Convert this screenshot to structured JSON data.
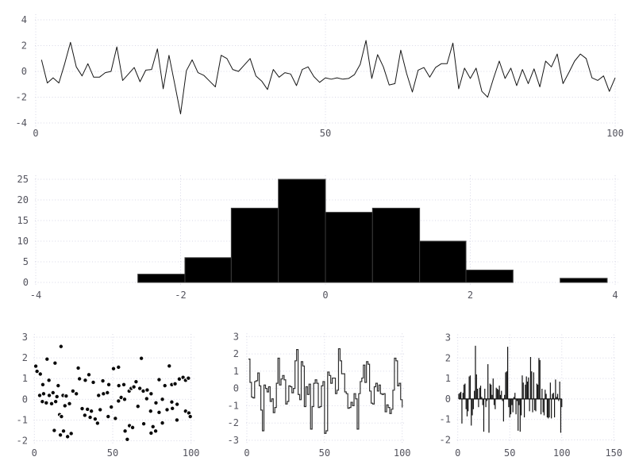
{
  "figure": {
    "background": "#ffffff",
    "grid_color": "#d7d7e6",
    "tick_label_color": "#53535d"
  },
  "chart_data": [
    {
      "id": "top-line",
      "type": "line",
      "title": "",
      "xlabel": "",
      "ylabel": "",
      "xlim": [
        0,
        100
      ],
      "ylim": [
        -4,
        4
      ],
      "xticks": [
        0,
        50,
        100
      ],
      "yticks": [
        4,
        2,
        0,
        -2,
        -4
      ],
      "grid": true,
      "legend": "none",
      "color": "#161616",
      "x_start": 1,
      "x_step": 1,
      "values": [
        0.9,
        -0.9,
        -0.5,
        -0.9,
        0.6,
        2.25,
        0.35,
        -0.35,
        0.6,
        -0.45,
        -0.45,
        -0.1,
        0.0,
        1.9,
        -0.7,
        -0.2,
        0.3,
        -0.8,
        0.1,
        0.15,
        1.75,
        -1.35,
        1.25,
        -1.0,
        -3.3,
        0.05,
        0.9,
        -0.1,
        -0.3,
        -0.75,
        -1.2,
        1.25,
        1.0,
        0.15,
        0.0,
        0.5,
        1.0,
        -0.35,
        -0.75,
        -1.4,
        0.15,
        -0.45,
        -0.1,
        -0.2,
        -1.1,
        0.15,
        0.35,
        -0.4,
        -0.85,
        -0.5,
        -0.6,
        -0.5,
        -0.6,
        -0.55,
        -0.25,
        0.55,
        2.4,
        -0.55,
        1.3,
        0.35,
        -1.05,
        -0.95,
        1.65,
        -0.15,
        -1.6,
        0.1,
        0.3,
        -0.45,
        0.3,
        0.6,
        0.6,
        2.2,
        -1.35,
        0.25,
        -0.55,
        0.25,
        -1.55,
        -2.0,
        -0.55,
        0.8,
        -0.55,
        0.25,
        -1.1,
        0.15,
        -0.95,
        0.2,
        -1.2,
        0.8,
        0.35,
        1.35,
        -0.95,
        -0.1,
        0.8,
        1.35,
        1.0,
        -0.5,
        -0.7,
        -0.35,
        -1.55,
        -0.5
      ]
    },
    {
      "id": "histogram",
      "type": "bar",
      "title": "",
      "xlim": [
        -4,
        4
      ],
      "ylim": [
        0,
        25
      ],
      "xticks": [
        -4,
        -2,
        0,
        2,
        4
      ],
      "yticks": [
        25,
        20,
        15,
        10,
        5,
        0
      ],
      "grid": true,
      "legend": "none",
      "fill": "#000000",
      "edge": "#3c3c3c",
      "bin_edges": [
        -2.59,
        -1.94,
        -1.3,
        -0.65,
        0.0,
        0.65,
        1.3,
        1.94,
        2.59,
        3.24,
        3.89
      ],
      "counts": [
        2,
        6,
        18,
        25,
        17,
        18,
        10,
        3,
        0,
        1
      ]
    },
    {
      "id": "scatter",
      "type": "scatter",
      "title": "",
      "xlim": [
        0,
        100
      ],
      "ylim": [
        -2,
        3
      ],
      "xticks": [
        0,
        50,
        100
      ],
      "yticks": [
        3,
        2,
        1,
        0,
        -1,
        -2
      ],
      "grid": true,
      "legend": "none",
      "marker_fill": "#0a0a0a",
      "marker_edge": "#ffffff",
      "marker_radius": 2.7,
      "points": [
        [
          0.9,
          1.6
        ],
        [
          1.7,
          1.35
        ],
        [
          3.4,
          0.19
        ],
        [
          3.8,
          1.22
        ],
        [
          5.1,
          -0.11
        ],
        [
          5.4,
          0.71
        ],
        [
          5.9,
          0.27
        ],
        [
          7.6,
          -0.17
        ],
        [
          8.1,
          1.94
        ],
        [
          9.3,
          0.92
        ],
        [
          9.5,
          0.19
        ],
        [
          11.0,
          -0.21
        ],
        [
          11.9,
          0.32
        ],
        [
          12.7,
          -1.5
        ],
        [
          13.2,
          1.75
        ],
        [
          13.6,
          -0.11
        ],
        [
          14.4,
          0.13
        ],
        [
          15.2,
          0.66
        ],
        [
          16.1,
          -0.74
        ],
        [
          16.6,
          -1.72
        ],
        [
          17.0,
          2.55
        ],
        [
          17.3,
          -0.83
        ],
        [
          18.3,
          0.19
        ],
        [
          18.6,
          -1.53
        ],
        [
          19.5,
          -0.31
        ],
        [
          20.3,
          0.16
        ],
        [
          21.2,
          -1.8
        ],
        [
          22.4,
          -0.21
        ],
        [
          23.5,
          -1.65
        ],
        [
          24.6,
          0.4
        ],
        [
          26.8,
          0.27
        ],
        [
          28.0,
          1.51
        ],
        [
          28.8,
          0.99
        ],
        [
          30.5,
          -0.45
        ],
        [
          32.2,
          -0.77
        ],
        [
          32.5,
          0.92
        ],
        [
          33.9,
          -0.48
        ],
        [
          34.8,
          1.19
        ],
        [
          35.6,
          -0.87
        ],
        [
          36.4,
          -0.57
        ],
        [
          37.6,
          0.82
        ],
        [
          38.8,
          -0.95
        ],
        [
          40.3,
          -1.15
        ],
        [
          41.0,
          0.19
        ],
        [
          42.0,
          -0.5
        ],
        [
          43.7,
          0.89
        ],
        [
          44.1,
          0.27
        ],
        [
          46.6,
          0.32
        ],
        [
          47.1,
          -0.83
        ],
        [
          47.5,
          0.71
        ],
        [
          49.1,
          -0.37
        ],
        [
          50.5,
          1.48
        ],
        [
          51.7,
          -0.92
        ],
        [
          53.7,
          1.55
        ],
        [
          53.9,
          0.66
        ],
        [
          53.7,
          -0.08
        ],
        [
          55.4,
          0.09
        ],
        [
          57.1,
          0.71
        ],
        [
          57.6,
          0.0
        ],
        [
          57.9,
          -1.53
        ],
        [
          59.3,
          -1.93
        ],
        [
          60.5,
          0.4
        ],
        [
          60.7,
          -1.27
        ],
        [
          61.8,
          0.53
        ],
        [
          62.7,
          -1.36
        ],
        [
          63.5,
          0.6
        ],
        [
          64.9,
          0.85
        ],
        [
          66.1,
          -0.34
        ],
        [
          67.3,
          0.53
        ],
        [
          68.3,
          1.98
        ],
        [
          69.5,
          0.4
        ],
        [
          69.8,
          -1.18
        ],
        [
          71.7,
          0.03
        ],
        [
          72.0,
          0.45
        ],
        [
          74.2,
          -0.57
        ],
        [
          74.5,
          0.27
        ],
        [
          74.5,
          -1.63
        ],
        [
          75.7,
          -1.32
        ],
        [
          77.4,
          -1.53
        ],
        [
          77.6,
          -0.17
        ],
        [
          79.6,
          0.95
        ],
        [
          79.6,
          -0.63
        ],
        [
          81.7,
          0.0
        ],
        [
          81.7,
          -1.14
        ],
        [
          83.3,
          0.66
        ],
        [
          84.7,
          -0.5
        ],
        [
          86.1,
          1.61
        ],
        [
          87.7,
          0.71
        ],
        [
          87.7,
          -0.13
        ],
        [
          88.1,
          -0.44
        ],
        [
          89.8,
          0.75
        ],
        [
          91.0,
          -1.0
        ],
        [
          91.1,
          -0.24
        ],
        [
          92.5,
          0.98
        ],
        [
          94.9,
          1.06
        ],
        [
          96.5,
          0.92
        ],
        [
          96.5,
          -0.57
        ],
        [
          98.3,
          1.02
        ],
        [
          98.6,
          -0.66
        ],
        [
          99.5,
          -0.83
        ]
      ]
    },
    {
      "id": "step",
      "type": "line",
      "style": "step-post",
      "title": "",
      "xlim": [
        0,
        100
      ],
      "ylim": [
        -3,
        3
      ],
      "xticks": [
        0,
        50,
        100
      ],
      "yticks": [
        3,
        2,
        1,
        0,
        -1,
        -2,
        -3
      ],
      "grid": true,
      "legend": "none",
      "color": "#2f2f2f",
      "x_start": 1,
      "x_step": 1,
      "values": [
        1.7,
        0.35,
        -0.5,
        -0.55,
        0.4,
        0.45,
        0.9,
        0.15,
        -1.25,
        -2.45,
        0.2,
        0.0,
        -0.2,
        0.1,
        -0.75,
        -0.6,
        -1.4,
        -1.1,
        0.3,
        1.75,
        0.2,
        0.55,
        0.75,
        0.5,
        -0.9,
        -0.75,
        0.15,
        0.1,
        -0.25,
        0.0,
        1.6,
        2.25,
        -0.35,
        -0.65,
        1.55,
        1.3,
        -1.05,
        0.1,
        -0.35,
        0.25,
        -2.35,
        -1.05,
        0.3,
        0.5,
        0.3,
        -1.1,
        -1.05,
        0.15,
        0.4,
        -2.6,
        -2.45,
        0.95,
        0.75,
        0.3,
        0.6,
        0.6,
        -0.3,
        -0.1,
        2.3,
        1.6,
        0.85,
        0.85,
        -0.2,
        -0.3,
        -1.15,
        -1.1,
        -0.8,
        -1.0,
        -0.3,
        -0.6,
        -2.35,
        -0.3,
        0.4,
        0.6,
        1.35,
        0.35,
        1.55,
        1.4,
        -0.15,
        -0.85,
        -0.9,
        0.1,
        0.3,
        -0.15,
        0.2,
        -0.3,
        -0.35,
        -0.3,
        -1.35,
        -0.95,
        -1.1,
        -1.45,
        -1.2,
        -0.1,
        1.75,
        1.6,
        0.15,
        0.3,
        -0.65,
        -1.1
      ]
    },
    {
      "id": "stem",
      "type": "bar",
      "style": "impulses",
      "title": "",
      "xlim": [
        0,
        150
      ],
      "ylim": [
        -2,
        3
      ],
      "xticks": [
        0,
        50,
        100,
        150
      ],
      "yticks": [
        3,
        2,
        1,
        0,
        -1,
        -2
      ],
      "grid": true,
      "legend": "none",
      "color": "#111111",
      "x_start": 1,
      "x_step": 1,
      "values": [
        0.25,
        0.3,
        0.35,
        -1.2,
        0.3,
        0.7,
        0.75,
        -0.5,
        -0.85,
        -0.6,
        1.1,
        1.15,
        -1.3,
        -0.8,
        -0.5,
        0.4,
        2.6,
        1.2,
        0.5,
        -0.4,
        0.55,
        0.65,
        0.1,
        -0.3,
        -1.6,
        0.5,
        -0.4,
        -0.1,
        1.7,
        -1.65,
        0.75,
        0.7,
        0.2,
        1.0,
        -0.3,
        -0.5,
        0.55,
        0.5,
        0.45,
        0.65,
        0.2,
        0.4,
        -0.1,
        -1.1,
        0.2,
        1.3,
        1.35,
        2.55,
        -0.4,
        -0.9,
        -0.75,
        -0.3,
        -0.65,
        0.1,
        0.3,
        -0.75,
        -0.1,
        -1.55,
        -0.3,
        -1.6,
        -0.8,
        1.15,
        0.8,
        -0.9,
        0.7,
        1.1,
        0.85,
        1.05,
        -0.6,
        2.05,
        1.35,
        -0.65,
        1.3,
        -0.55,
        -0.6,
        0.75,
        0.7,
        2.0,
        1.9,
        -0.75,
        0.5,
        -0.65,
        -0.8,
        0.45,
        0.25,
        -0.9,
        -0.95,
        -0.9,
        0.8,
        -0.95,
        0.25,
        0.3,
        -0.9,
        0.95,
        0.1,
        0.25,
        -0.1,
        0.85,
        -1.65,
        -0.4
      ]
    }
  ]
}
